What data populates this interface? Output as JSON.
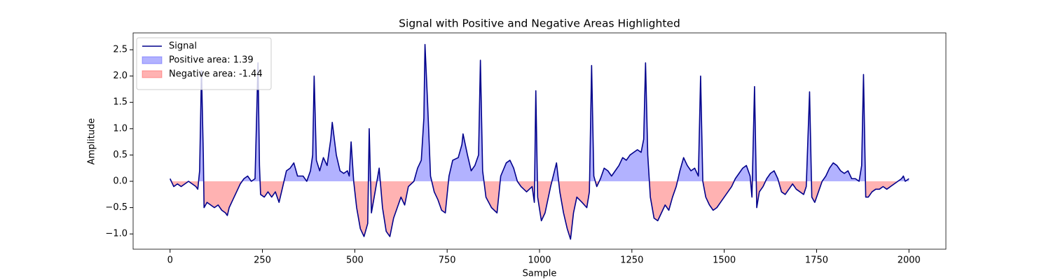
{
  "chart_data": {
    "type": "line",
    "title": "Signal with Positive and Negative Areas Highlighted",
    "xlabel": "Sample",
    "ylabel": "Amplitude",
    "x": [
      0,
      10,
      20,
      30,
      40,
      50,
      60,
      70,
      75,
      80,
      85,
      90,
      92,
      100,
      110,
      120,
      130,
      140,
      150,
      155,
      160,
      170,
      180,
      190,
      200,
      210,
      220,
      230,
      238,
      242,
      245,
      255,
      265,
      275,
      285,
      295,
      305,
      315,
      325,
      335,
      345,
      360,
      370,
      380,
      386,
      390,
      396,
      405,
      415,
      425,
      435,
      439,
      450,
      460,
      470,
      480,
      485,
      490,
      497,
      505,
      515,
      525,
      535,
      539,
      545,
      555,
      566,
      575,
      585,
      595,
      605,
      615,
      625,
      635,
      645,
      660,
      670,
      680,
      687,
      690,
      697,
      705,
      715,
      725,
      735,
      745,
      755,
      765,
      780,
      790,
      793,
      805,
      815,
      825,
      835,
      840,
      846,
      855,
      870,
      885,
      895,
      910,
      920,
      930,
      940,
      950,
      965,
      980,
      986,
      990,
      995,
      1005,
      1015,
      1030,
      1046,
      1055,
      1065,
      1075,
      1084,
      1092,
      1101,
      1115,
      1128,
      1135,
      1141,
      1147,
      1155,
      1165,
      1175,
      1185,
      1195,
      1205,
      1215,
      1225,
      1235,
      1245,
      1255,
      1265,
      1275,
      1282,
      1287,
      1293,
      1300,
      1310,
      1320,
      1330,
      1340,
      1350,
      1360,
      1370,
      1380,
      1390,
      1400,
      1410,
      1420,
      1430,
      1436,
      1442,
      1450,
      1460,
      1470,
      1480,
      1490,
      1500,
      1510,
      1520,
      1530,
      1540,
      1550,
      1560,
      1570,
      1575,
      1582,
      1588,
      1595,
      1605,
      1615,
      1625,
      1635,
      1645,
      1655,
      1665,
      1675,
      1685,
      1695,
      1705,
      1715,
      1722,
      1731,
      1737,
      1745,
      1755,
      1765,
      1775,
      1785,
      1795,
      1805,
      1815,
      1825,
      1835,
      1845,
      1855,
      1865,
      1872,
      1877,
      1883,
      1890,
      1900,
      1910,
      1920,
      1930,
      1940,
      1950,
      1960,
      1970,
      1980,
      1985,
      1990,
      2000
    ],
    "series": [
      {
        "name": "Signal",
        "color": "#00008b",
        "values": [
          0.05,
          -0.1,
          -0.05,
          -0.1,
          -0.05,
          0.0,
          -0.05,
          -0.1,
          -0.15,
          0.2,
          2.1,
          0.5,
          -0.5,
          -0.4,
          -0.45,
          -0.5,
          -0.45,
          -0.55,
          -0.6,
          -0.65,
          -0.5,
          -0.35,
          -0.2,
          -0.05,
          0.05,
          0.1,
          0.0,
          0.05,
          2.25,
          0.3,
          -0.25,
          -0.3,
          -0.2,
          -0.3,
          -0.2,
          -0.4,
          -0.1,
          0.2,
          0.25,
          0.35,
          0.1,
          0.1,
          0.0,
          0.2,
          0.5,
          2.0,
          0.4,
          0.2,
          0.45,
          0.3,
          0.8,
          1.12,
          0.5,
          0.2,
          0.15,
          0.2,
          0.1,
          0.75,
          0.0,
          -0.5,
          -0.9,
          -1.05,
          -0.8,
          1.0,
          -0.6,
          -0.2,
          0.25,
          -0.5,
          -0.95,
          -1.05,
          -0.7,
          -0.5,
          -0.3,
          -0.45,
          -0.1,
          0.0,
          0.25,
          0.4,
          1.2,
          2.6,
          1.5,
          0.1,
          -0.2,
          -0.35,
          -0.55,
          -0.6,
          0.1,
          0.4,
          0.45,
          0.7,
          0.9,
          0.5,
          0.2,
          0.3,
          0.5,
          2.3,
          0.2,
          -0.3,
          -0.5,
          -0.6,
          0.1,
          0.35,
          0.4,
          0.25,
          0.0,
          -0.1,
          -0.2,
          -0.1,
          -0.4,
          1.72,
          -0.3,
          -0.75,
          -0.6,
          -0.1,
          0.35,
          -0.2,
          -0.6,
          -0.9,
          -1.1,
          -0.6,
          -0.3,
          -0.4,
          -0.5,
          -0.2,
          2.2,
          0.1,
          -0.1,
          0.05,
          0.25,
          0.2,
          0.1,
          0.2,
          0.3,
          0.45,
          0.4,
          0.5,
          0.55,
          0.6,
          0.55,
          0.8,
          2.25,
          0.5,
          -0.3,
          -0.7,
          -0.75,
          -0.6,
          -0.45,
          -0.55,
          -0.3,
          -0.1,
          0.2,
          0.45,
          0.3,
          0.2,
          0.25,
          0.1,
          2.0,
          0.0,
          -0.3,
          -0.45,
          -0.55,
          -0.5,
          -0.4,
          -0.3,
          -0.2,
          -0.1,
          0.05,
          0.15,
          0.25,
          0.3,
          0.1,
          -0.3,
          1.8,
          -0.5,
          -0.2,
          -0.1,
          0.05,
          0.15,
          0.2,
          0.05,
          -0.2,
          -0.25,
          -0.15,
          -0.05,
          -0.15,
          -0.2,
          -0.25,
          -0.1,
          1.7,
          -0.3,
          -0.4,
          -0.2,
          0.0,
          0.1,
          0.25,
          0.35,
          0.3,
          0.2,
          0.15,
          0.2,
          0.05,
          0.05,
          0.0,
          0.3,
          2.03,
          -0.3,
          -0.3,
          -0.2,
          -0.15,
          -0.15,
          -0.1,
          -0.15,
          -0.1,
          -0.05,
          0.0,
          0.05,
          0.1,
          0.0,
          0.05
        ]
      }
    ],
    "fills": [
      {
        "name": "Positive area: 1.39",
        "color": "#0000ff",
        "where": "above"
      },
      {
        "name": "Negative area: -1.44",
        "color": "#ff0000",
        "where": "below"
      }
    ],
    "fill_opacity": 0.3,
    "xlim": [
      -100,
      2100
    ],
    "ylim": [
      -1.29,
      2.82
    ],
    "xticks": [
      0,
      250,
      500,
      750,
      1000,
      1250,
      1500,
      1750,
      2000
    ],
    "yticks": [
      {
        "value": -1.0,
        "label": "−1.0"
      },
      {
        "value": -0.5,
        "label": "−0.5"
      },
      {
        "value": 0.0,
        "label": "0.0"
      },
      {
        "value": 0.5,
        "label": "0.5"
      },
      {
        "value": 1.0,
        "label": "1.0"
      },
      {
        "value": 1.5,
        "label": "1.5"
      },
      {
        "value": 2.0,
        "label": "2.0"
      },
      {
        "value": 2.5,
        "label": "2.5"
      }
    ],
    "legend": "upper left",
    "grid": false
  }
}
